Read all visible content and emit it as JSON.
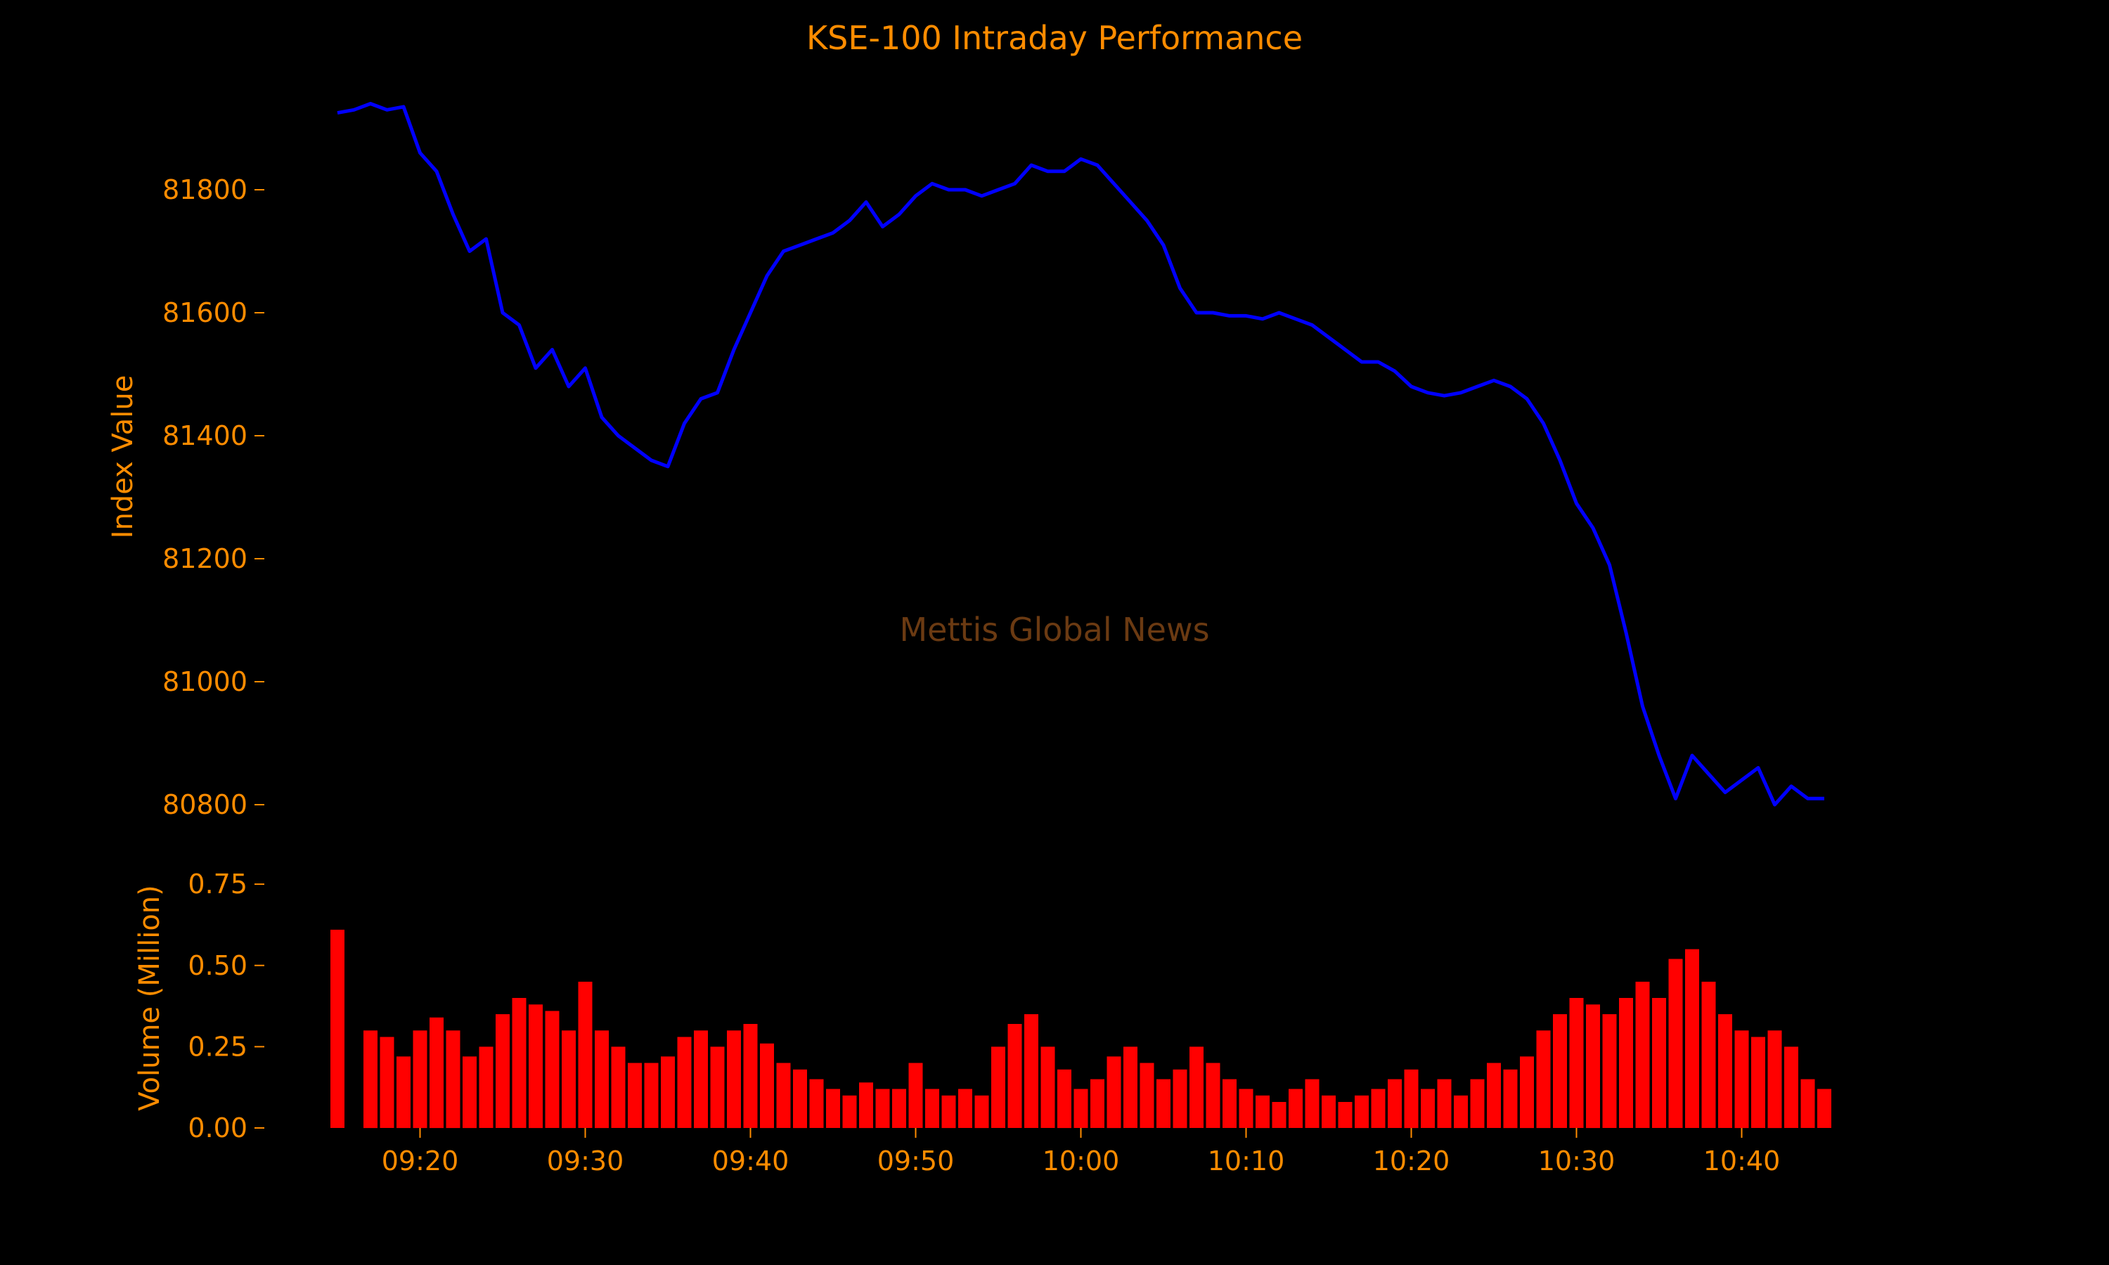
{
  "colors": {
    "background": "#000000",
    "text": "#ff8c00",
    "price_line": "#0000ff",
    "volume_bars": "#ff0000",
    "watermark": "#6b3a12"
  },
  "watermark": "Mettis Global News",
  "chart_data": [
    {
      "type": "line",
      "title": "KSE-100 Intraday Performance",
      "xlabel": "",
      "ylabel": "Index Value",
      "ylim": [
        80760,
        81960
      ],
      "yticks": [
        80800,
        81000,
        81200,
        81400,
        81600,
        81800
      ],
      "ytick_labels": [
        "80800",
        "81000",
        "81200",
        "81400",
        "81600",
        "81800"
      ],
      "grid": false,
      "series": [
        {
          "x": [
            "09:15",
            "09:16",
            "09:17",
            "09:18",
            "09:19",
            "09:20",
            "09:21",
            "09:22",
            "09:23",
            "09:24",
            "09:25",
            "09:26",
            "09:27",
            "09:28",
            "09:29",
            "09:30",
            "09:31",
            "09:32",
            "09:33",
            "09:34",
            "09:35",
            "09:36",
            "09:37",
            "09:38",
            "09:39",
            "09:40",
            "09:41",
            "09:42",
            "09:43",
            "09:44",
            "09:45",
            "09:46",
            "09:47",
            "09:48",
            "09:49",
            "09:50",
            "09:51",
            "09:52",
            "09:53",
            "09:54",
            "09:55",
            "09:56",
            "09:57",
            "09:58",
            "09:59",
            "10:00",
            "10:01",
            "10:02",
            "10:03",
            "10:04",
            "10:05",
            "10:06",
            "10:07",
            "10:08",
            "10:09",
            "10:10",
            "10:11",
            "10:12",
            "10:13",
            "10:14",
            "10:15",
            "10:16",
            "10:17",
            "10:18",
            "10:19",
            "10:20",
            "10:21",
            "10:22",
            "10:23",
            "10:24",
            "10:25",
            "10:26",
            "10:27",
            "10:28",
            "10:29",
            "10:30",
            "10:31",
            "10:32",
            "10:33",
            "10:34",
            "10:35",
            "10:36",
            "10:37",
            "10:38",
            "10:39",
            "10:40",
            "10:41",
            "10:42",
            "10:43",
            "10:44",
            "10:45"
          ],
          "values": [
            81925,
            81930,
            81940,
            81930,
            81935,
            81860,
            81830,
            81760,
            81700,
            81720,
            81600,
            81580,
            81510,
            81540,
            81480,
            81510,
            81430,
            81400,
            81380,
            81360,
            81350,
            81420,
            81460,
            81470,
            81540,
            81600,
            81660,
            81700,
            81710,
            81720,
            81730,
            81750,
            81780,
            81740,
            81760,
            81790,
            81810,
            81800,
            81800,
            81790,
            81800,
            81810,
            81840,
            81830,
            81830,
            81850,
            81840,
            81810,
            81780,
            81750,
            81710,
            81640,
            81600,
            81600,
            81595,
            81595,
            81590,
            81600,
            81590,
            81580,
            81560,
            81540,
            81520,
            81520,
            81505,
            81480,
            81470,
            81465,
            81470,
            81480,
            81490,
            81480,
            81460,
            81420,
            81360,
            81290,
            81250,
            81190,
            81080,
            80960,
            80880,
            80810,
            80880,
            80850,
            80820,
            80840,
            80860,
            80800,
            80830,
            80810,
            80810
          ]
        }
      ]
    },
    {
      "type": "bar",
      "title": "",
      "xlabel": "",
      "ylabel": "Volume (Million)",
      "ylim": [
        0,
        0.8
      ],
      "yticks": [
        0.0,
        0.25,
        0.5,
        0.75
      ],
      "ytick_labels": [
        "0.00",
        "0.25",
        "0.50",
        "0.75"
      ],
      "xticks": [
        "09:20",
        "09:30",
        "09:40",
        "09:50",
        "10:00",
        "10:10",
        "10:20",
        "10:30",
        "10:40"
      ],
      "grid": false,
      "series": [
        {
          "x": [
            "09:15",
            "09:16",
            "09:17",
            "09:18",
            "09:19",
            "09:20",
            "09:21",
            "09:22",
            "09:23",
            "09:24",
            "09:25",
            "09:26",
            "09:27",
            "09:28",
            "09:29",
            "09:30",
            "09:31",
            "09:32",
            "09:33",
            "09:34",
            "09:35",
            "09:36",
            "09:37",
            "09:38",
            "09:39",
            "09:40",
            "09:41",
            "09:42",
            "09:43",
            "09:44",
            "09:45",
            "09:46",
            "09:47",
            "09:48",
            "09:49",
            "09:50",
            "09:51",
            "09:52",
            "09:53",
            "09:54",
            "09:55",
            "09:56",
            "09:57",
            "09:58",
            "09:59",
            "10:00",
            "10:01",
            "10:02",
            "10:03",
            "10:04",
            "10:05",
            "10:06",
            "10:07",
            "10:08",
            "10:09",
            "10:10",
            "10:11",
            "10:12",
            "10:13",
            "10:14",
            "10:15",
            "10:16",
            "10:17",
            "10:18",
            "10:19",
            "10:20",
            "10:21",
            "10:22",
            "10:23",
            "10:24",
            "10:25",
            "10:26",
            "10:27",
            "10:28",
            "10:29",
            "10:30",
            "10:31",
            "10:32",
            "10:33",
            "10:34",
            "10:35",
            "10:36",
            "10:37",
            "10:38",
            "10:39",
            "10:40",
            "10:41",
            "10:42",
            "10:43",
            "10:44",
            "10:45"
          ],
          "values": [
            0.61,
            0.0,
            0.3,
            0.28,
            0.22,
            0.3,
            0.34,
            0.3,
            0.22,
            0.25,
            0.35,
            0.4,
            0.38,
            0.36,
            0.3,
            0.45,
            0.3,
            0.25,
            0.2,
            0.2,
            0.22,
            0.28,
            0.3,
            0.25,
            0.3,
            0.32,
            0.26,
            0.2,
            0.18,
            0.15,
            0.12,
            0.1,
            0.14,
            0.12,
            0.12,
            0.2,
            0.12,
            0.1,
            0.12,
            0.1,
            0.25,
            0.32,
            0.35,
            0.25,
            0.18,
            0.12,
            0.15,
            0.22,
            0.25,
            0.2,
            0.15,
            0.18,
            0.25,
            0.2,
            0.15,
            0.12,
            0.1,
            0.08,
            0.12,
            0.15,
            0.1,
            0.08,
            0.1,
            0.12,
            0.15,
            0.18,
            0.12,
            0.15,
            0.1,
            0.15,
            0.2,
            0.18,
            0.22,
            0.3,
            0.35,
            0.4,
            0.38,
            0.35,
            0.4,
            0.45,
            0.4,
            0.52,
            0.55,
            0.45,
            0.35,
            0.3,
            0.28,
            0.3,
            0.25,
            0.15,
            0.12
          ]
        }
      ]
    }
  ]
}
